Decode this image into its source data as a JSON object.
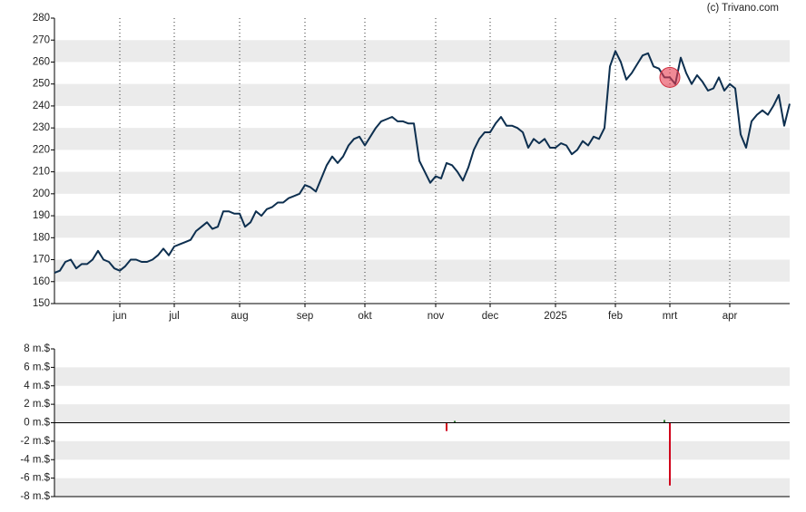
{
  "watermark": "(c) Trivano.com",
  "chart_data": [
    {
      "type": "line",
      "color": "#0d2f4f",
      "grid": true,
      "values": [
        164,
        165,
        169,
        170,
        166,
        168,
        168,
        170,
        174,
        170,
        169,
        166,
        165,
        167,
        170,
        170,
        169,
        169,
        170,
        172,
        175,
        172,
        176,
        177,
        178,
        179,
        183,
        185,
        187,
        184,
        185,
        192,
        192,
        191,
        191,
        185,
        187,
        192,
        190,
        193,
        194,
        196,
        196,
        198,
        199,
        200,
        204,
        203,
        201,
        207,
        213,
        217,
        214,
        217,
        222,
        225,
        226,
        222,
        226,
        230,
        233,
        234,
        235,
        233,
        233,
        232,
        232,
        215,
        210,
        205,
        208,
        207,
        214,
        213,
        210,
        206,
        212,
        220,
        225,
        228,
        228,
        232,
        235,
        231,
        231,
        230,
        228,
        221,
        225,
        223,
        225,
        221,
        221,
        223,
        222,
        218,
        220,
        224,
        222,
        226,
        225,
        230,
        258,
        265,
        260,
        252,
        255,
        259,
        263,
        264,
        258,
        257,
        253,
        253,
        250,
        262,
        255,
        250,
        254,
        251,
        247,
        248,
        253,
        247,
        250,
        248,
        227,
        221,
        233,
        236,
        238,
        236,
        240,
        245,
        231,
        241
      ],
      "xlim": [
        0,
        135
      ],
      "xticks": [
        {
          "value": 12,
          "label": "jun"
        },
        {
          "value": 22,
          "label": "jul"
        },
        {
          "value": 34,
          "label": "aug"
        },
        {
          "value": 46,
          "label": "sep"
        },
        {
          "value": 57,
          "label": "okt"
        },
        {
          "value": 70,
          "label": "nov"
        },
        {
          "value": 80,
          "label": "dec"
        },
        {
          "value": 92,
          "label": "2025"
        },
        {
          "value": 103,
          "label": "feb"
        },
        {
          "value": 113,
          "label": "mrt"
        },
        {
          "value": 124,
          "label": "apr"
        }
      ],
      "ylim": [
        150,
        280
      ],
      "yticks": [
        150,
        160,
        170,
        180,
        190,
        200,
        210,
        220,
        230,
        240,
        250,
        260,
        270,
        280
      ]
    },
    {
      "type": "bar",
      "grid": true,
      "x": [
        72,
        73.5,
        112,
        113
      ],
      "values": [
        -0.9,
        0.2,
        0.3,
        -6.8
      ],
      "colors": [
        "#d0021b",
        "#2e7d32",
        "#2e7d32",
        "#d0021b"
      ],
      "xlim": [
        0,
        135
      ],
      "ylim": [
        -8,
        8
      ],
      "yticks": [
        {
          "value": -8,
          "label": "-8 m.$"
        },
        {
          "value": -6,
          "label": "-6 m.$"
        },
        {
          "value": -4,
          "label": "-4 m.$"
        },
        {
          "value": -2,
          "label": "-2 m.$"
        },
        {
          "value": 0,
          "label": "0 m.$"
        },
        {
          "value": 2,
          "label": "2 m.$"
        },
        {
          "value": 4,
          "label": "4 m.$"
        },
        {
          "value": 6,
          "label": "6 m.$"
        },
        {
          "value": 8,
          "label": "8 m.$"
        }
      ]
    }
  ]
}
